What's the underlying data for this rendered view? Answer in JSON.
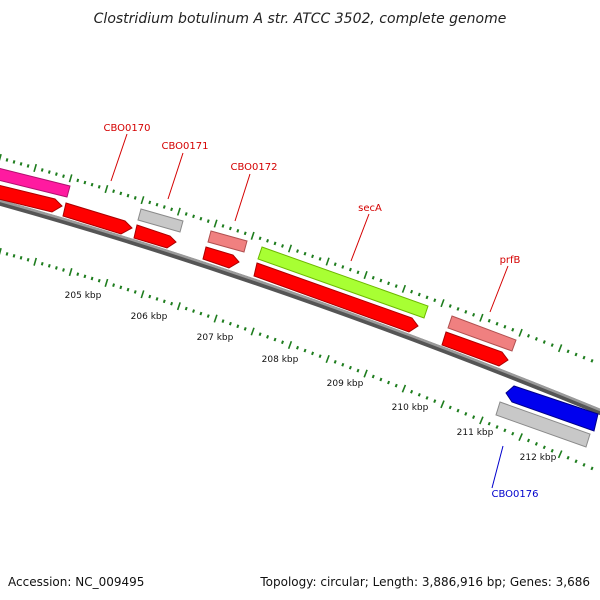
{
  "title": "Clostridium botulinum A str. ATCC 3502, complete genome",
  "footer": {
    "accession": "Accession: NC_009495",
    "summary": "Topology: circular; Length: 3,886,916 bp; Genes: 3,686"
  },
  "colors": {
    "backbone": "#7a7a7a",
    "tick": "#1e7d1e",
    "forward_gene_label": "#d40000",
    "reverse_gene_label": "#0000cc",
    "cds_red": "#ff0000",
    "pink": "#ff1aa0",
    "grey": "#bdbdbd",
    "salmon": "#f08080",
    "lime": "#a8ff33",
    "blue": "#0000ee"
  },
  "kbp_labels": [
    "205 kbp",
    "206 kbp",
    "207 kbp",
    "208 kbp",
    "209 kbp",
    "210 kbp",
    "211 kbp",
    "212 kbp"
  ],
  "gene_labels": [
    {
      "text": "CBO0170",
      "strand": "forward"
    },
    {
      "text": "CBO0171",
      "strand": "forward"
    },
    {
      "text": "CBO0172",
      "strand": "forward"
    },
    {
      "text": "secA",
      "strand": "forward"
    },
    {
      "text": "prfB",
      "strand": "forward"
    },
    {
      "text": "CBO0176",
      "strand": "reverse"
    }
  ]
}
